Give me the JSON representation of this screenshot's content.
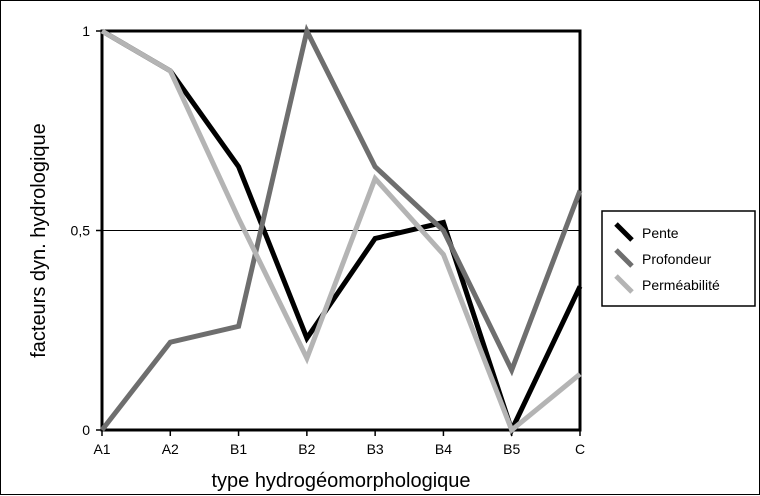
{
  "chart_data": {
    "type": "line",
    "title": "",
    "xlabel": "type hydrogéomorphologique",
    "ylabel": "facteurs dyn. hydrologique",
    "categories": [
      "A1",
      "A2",
      "B1",
      "B2",
      "B3",
      "B4",
      "B5",
      "C"
    ],
    "y_ticks": [
      {
        "value": 0,
        "label": "0"
      },
      {
        "value": 0.5,
        "label": "0,5"
      },
      {
        "value": 1,
        "label": "1"
      }
    ],
    "ylim": [
      0,
      1
    ],
    "grid": "horizontal line at 0.5",
    "legend_position": "right",
    "series": [
      {
        "name": "Pente",
        "color": "#000000",
        "values": [
          1.0,
          0.9,
          0.66,
          0.23,
          0.48,
          0.52,
          0.0,
          0.36
        ]
      },
      {
        "name": "Profondeur",
        "color": "#6e6e6e",
        "values": [
          0.0,
          0.22,
          0.26,
          1.0,
          0.66,
          0.5,
          0.15,
          0.6
        ]
      },
      {
        "name": "Perméabilité",
        "color": "#b4b4b4",
        "values": [
          1.0,
          0.9,
          0.53,
          0.18,
          0.63,
          0.44,
          0.0,
          0.14
        ]
      }
    ]
  }
}
